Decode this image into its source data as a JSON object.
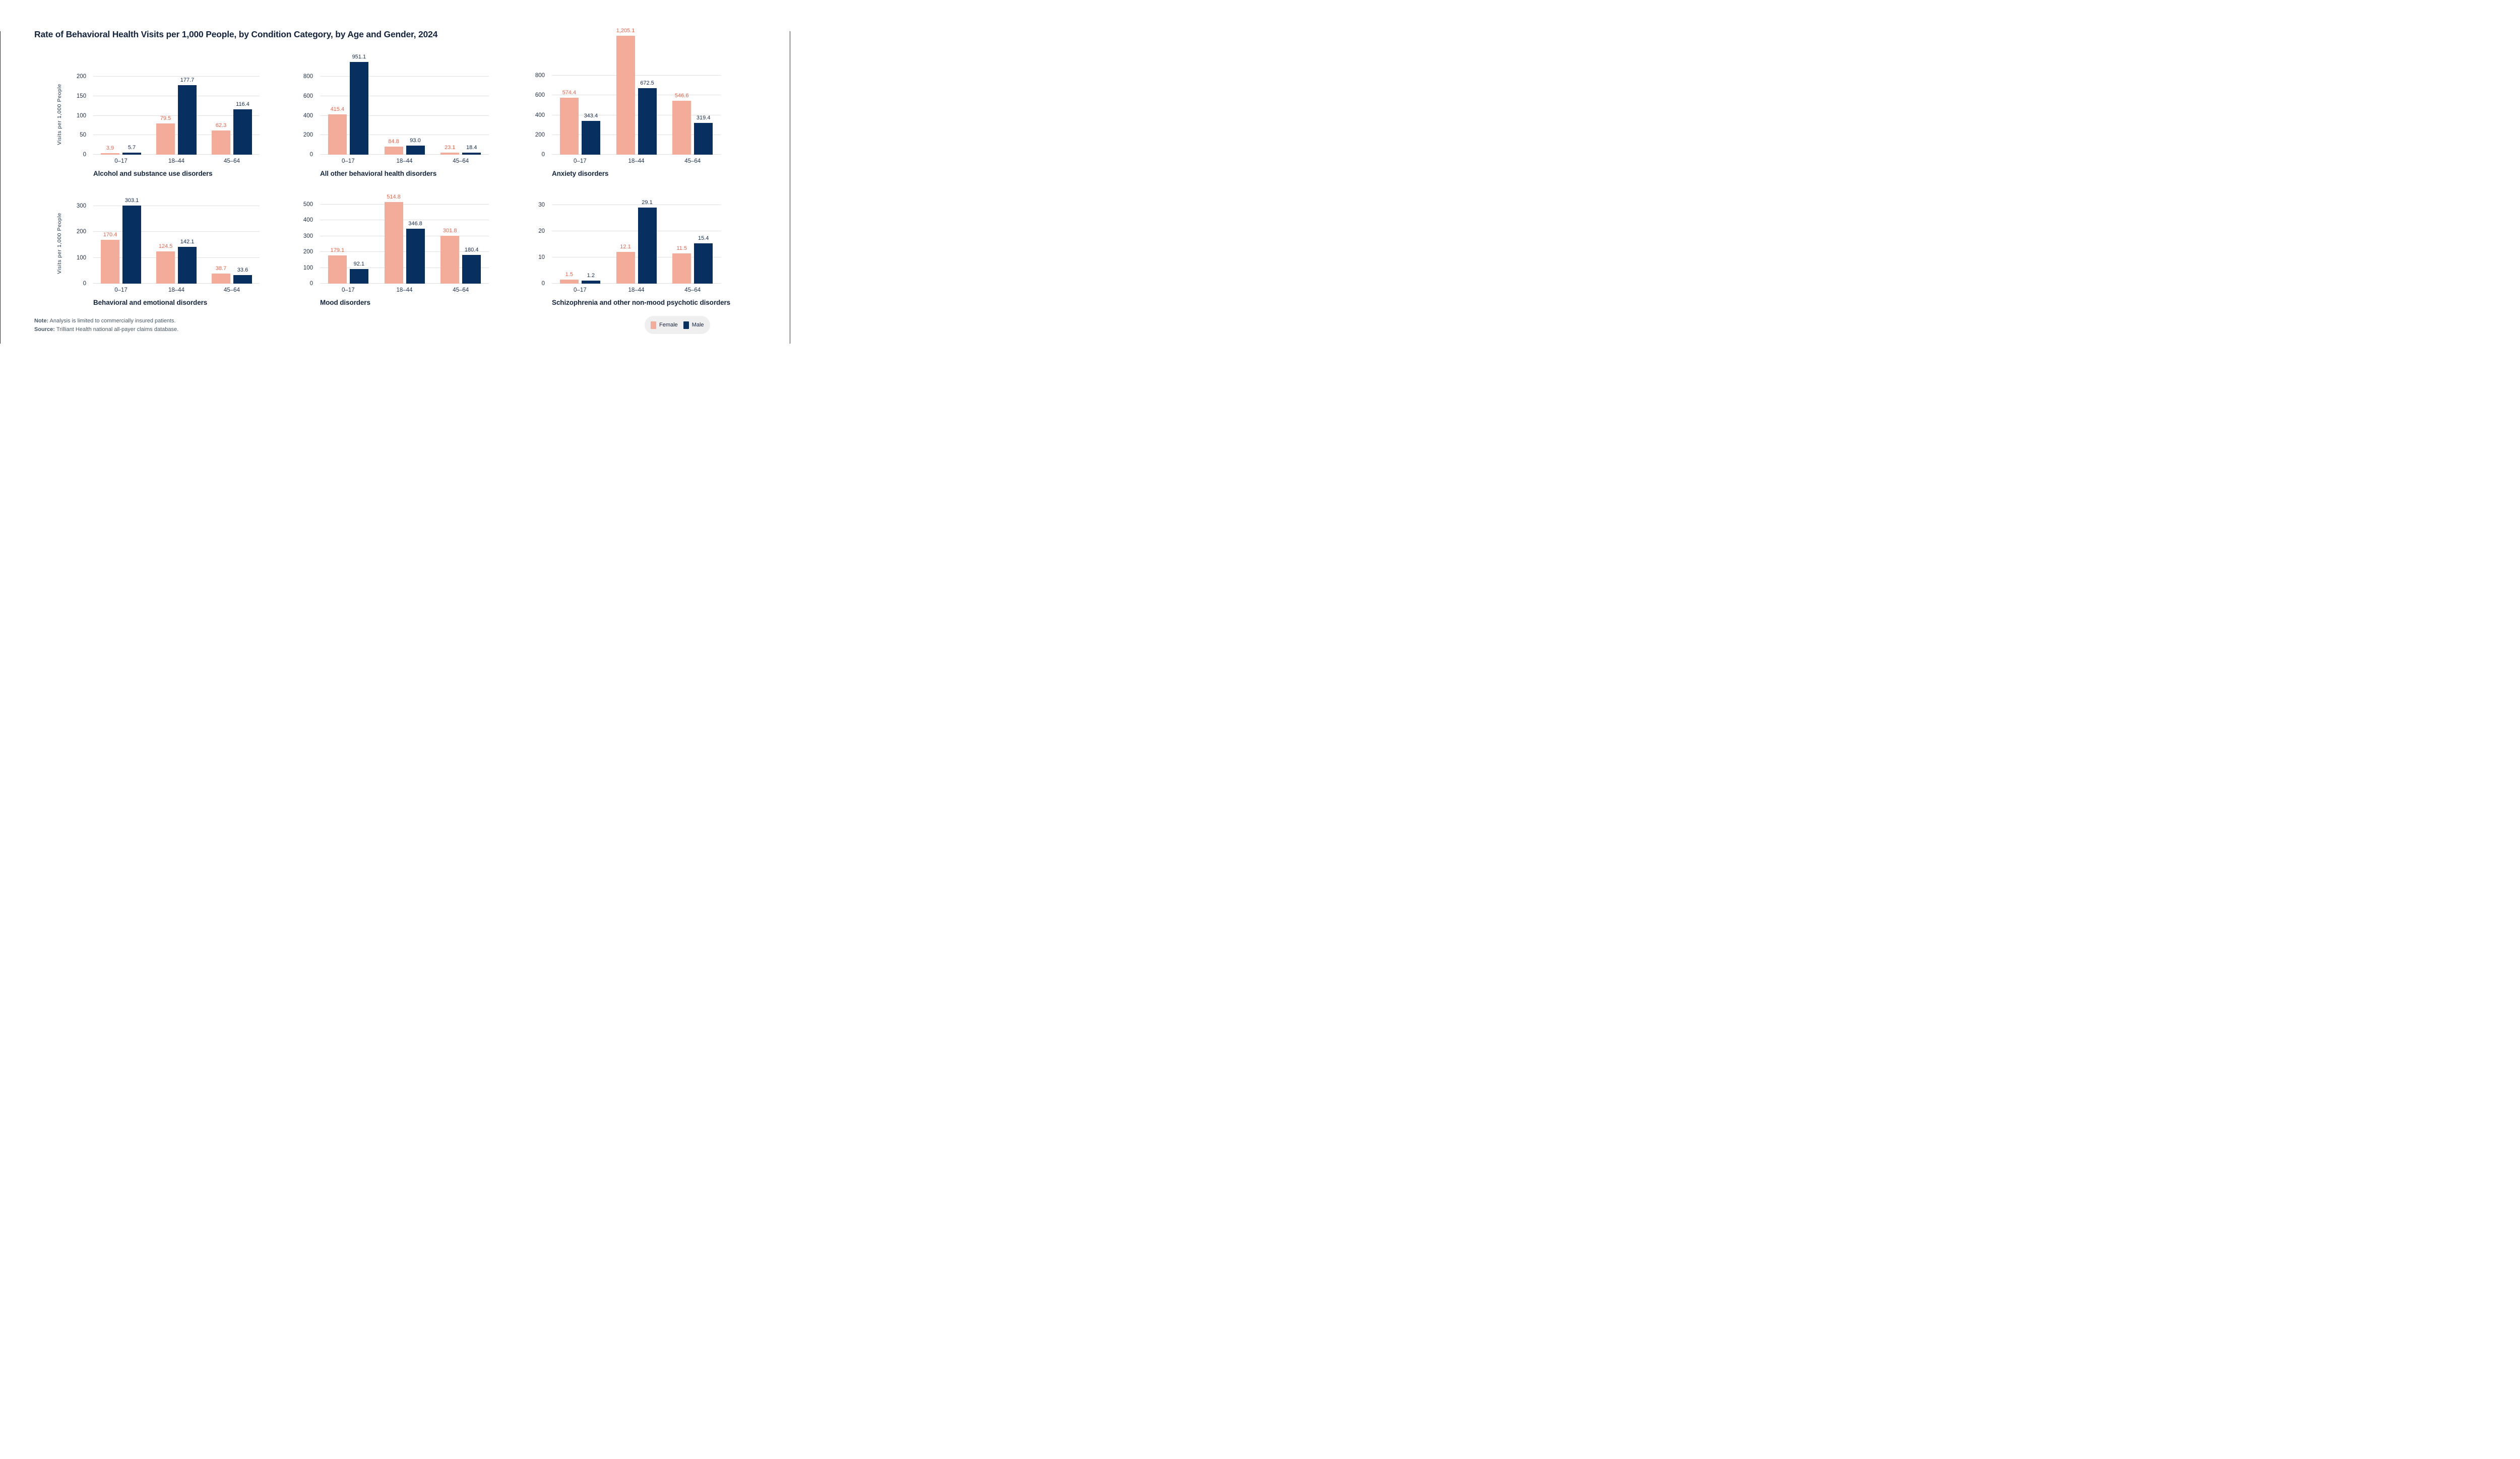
{
  "page": {
    "title": "Rate of Behavioral Health Visits per 1,000 People, by Condition Category, by Age and Gender, 2024",
    "background": "#ffffff"
  },
  "axis": {
    "y_axis_label": "Visits per 1,000 People",
    "categories": [
      "0–17",
      "18–44",
      "45–64"
    ]
  },
  "colors": {
    "female_bar": "#f3ab9a",
    "male_bar": "#073060",
    "female_value_label": "#eb6249",
    "male_value_label": "#13294b",
    "axis_text": "#1e2f4d",
    "title_text": "#14233e",
    "gridline": "#e0e0e0",
    "footnote_text": "#4a5a6a",
    "legend_background": "#efefef"
  },
  "legend": {
    "items": [
      {
        "label": "Female",
        "color": "#f3ab9a"
      },
      {
        "label": "Male",
        "color": "#073060"
      }
    ]
  },
  "footer": {
    "note_label": "Note:",
    "note_text": " Analysis is limited to commercially insured patients.",
    "source_label": "Source:",
    "source_text": " Trilliant Health national all-payer claims database."
  },
  "chart_data": [
    {
      "type": "bar",
      "title": "Alcohol and substance use disorders",
      "categories": [
        "0–17",
        "18–44",
        "45–64"
      ],
      "series": [
        {
          "name": "Female",
          "values": [
            3.9,
            79.5,
            62.3
          ],
          "labels": [
            "3.9",
            "79.5",
            "62.3"
          ]
        },
        {
          "name": "Male",
          "values": [
            5.7,
            177.7,
            116.4
          ],
          "labels": [
            "5.7",
            "177.7",
            "116.4"
          ]
        }
      ],
      "ylabel": "Visits per 1,000 People",
      "yticks": [
        0,
        50,
        100,
        150,
        200
      ],
      "ylim": [
        0,
        206.5
      ],
      "grid": true
    },
    {
      "type": "bar",
      "title": "All other behavioral health disorders",
      "categories": [
        "0–17",
        "18–44",
        "45–64"
      ],
      "series": [
        {
          "name": "Female",
          "values": [
            415.4,
            84.8,
            23.1
          ],
          "labels": [
            "415.4",
            "84.8",
            "23.1"
          ]
        },
        {
          "name": "Male",
          "values": [
            951.1,
            93.0,
            18.4
          ],
          "labels": [
            "951.1",
            "93.0",
            "18.4"
          ]
        }
      ],
      "ylabel": "",
      "yticks": [
        0,
        200,
        400,
        600,
        800
      ],
      "ylim": [
        0,
        981
      ],
      "grid": true
    },
    {
      "type": "bar",
      "title": "Anxiety disorders",
      "categories": [
        "0–17",
        "18–44",
        "45–64"
      ],
      "series": [
        {
          "name": "Female",
          "values": [
            574.4,
            1205.1,
            546.6
          ],
          "labels": [
            "574.4",
            "1,205.1",
            "546.6"
          ]
        },
        {
          "name": "Male",
          "values": [
            343.4,
            672.5,
            319.4
          ],
          "labels": [
            "343.4",
            "672.5",
            "319.4"
          ]
        }
      ],
      "ylabel": "",
      "yticks": [
        0,
        200,
        400,
        600,
        800
      ],
      "ylim": [
        0,
        1223
      ],
      "grid": true
    },
    {
      "type": "bar",
      "title": "Behavioral and emotional disorders",
      "categories": [
        "0–17",
        "18–44",
        "45–64"
      ],
      "series": [
        {
          "name": "Female",
          "values": [
            170.4,
            124.5,
            38.7
          ],
          "labels": [
            "170.4",
            "124.5",
            "38.7"
          ]
        },
        {
          "name": "Male",
          "values": [
            303.1,
            142.1,
            33.6
          ],
          "labels": [
            "303.1",
            "142.1",
            "33.6"
          ]
        }
      ],
      "ylabel": "Visits per 1,000 People",
      "yticks": [
        0,
        100,
        200,
        300
      ],
      "ylim": [
        0,
        312
      ],
      "grid": true
    },
    {
      "type": "bar",
      "title": "Mood disorders",
      "categories": [
        "0–17",
        "18–44",
        "45–64"
      ],
      "series": [
        {
          "name": "Female",
          "values": [
            179.1,
            514.8,
            301.8
          ],
          "labels": [
            "179.1",
            "514.8",
            "301.8"
          ]
        },
        {
          "name": "Male",
          "values": [
            92.1,
            346.8,
            180.4
          ],
          "labels": [
            "92.1",
            "346.8",
            "180.4"
          ]
        }
      ],
      "ylabel": "",
      "yticks": [
        0,
        100,
        200,
        300,
        400,
        500
      ],
      "ylim": [
        0,
        525
      ],
      "grid": true
    },
    {
      "type": "bar",
      "title": "Schizophrenia and other non-mood psychotic disorders",
      "categories": [
        "0–17",
        "18–44",
        "45–64"
      ],
      "series": [
        {
          "name": "Female",
          "values": [
            1.5,
            12.1,
            11.5
          ],
          "labels": [
            "1.5",
            "12.1",
            "11.5"
          ]
        },
        {
          "name": "Male",
          "values": [
            1.2,
            29.1,
            15.4
          ],
          "labels": [
            "1.2",
            "29.1",
            "15.4"
          ]
        }
      ],
      "ylabel": "",
      "yticks": [
        0,
        10,
        20,
        30
      ],
      "ylim": [
        0,
        30.4
      ],
      "grid": true
    }
  ]
}
